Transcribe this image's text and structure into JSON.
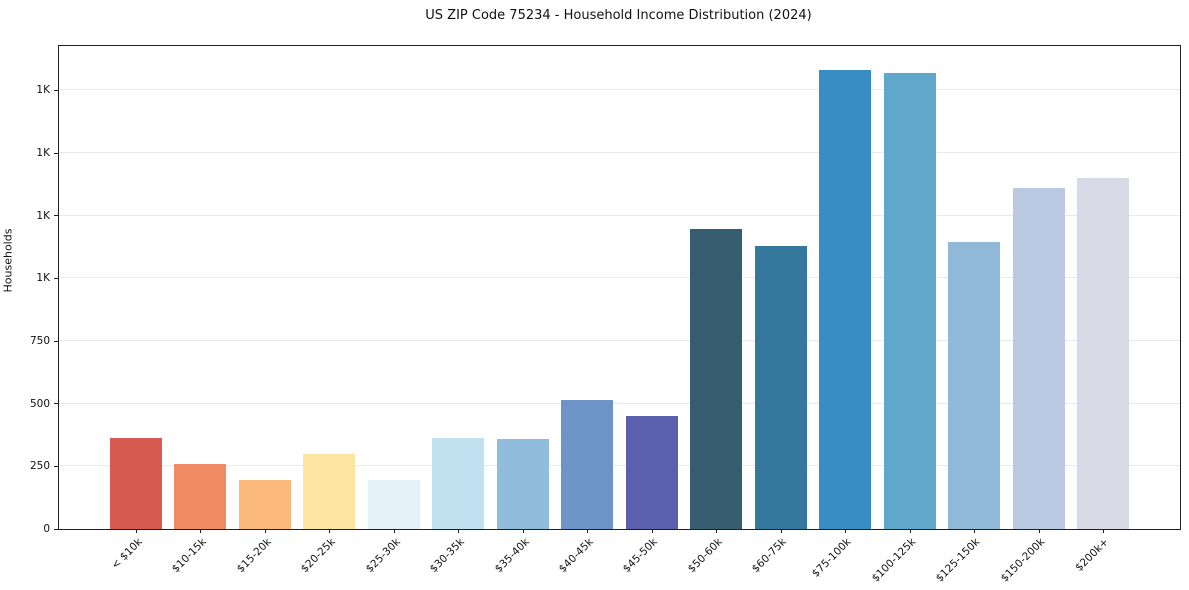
{
  "chart_data": {
    "type": "bar",
    "title": "US ZIP Code 75234 - Household Income Distribution (2024)",
    "xlabel": "",
    "ylabel": "Households",
    "legend": "none",
    "grid": "horizontal",
    "ylim": [
      0,
      1927
    ],
    "categories": [
      "< $10k",
      "$10-15k",
      "$15-20k",
      "$20-25k",
      "$25-30k",
      "$30-35k",
      "$35-40k",
      "$40-45k",
      "$45-50k",
      "$50-60k",
      "$60-75k",
      "$75-100k",
      "$100-125k",
      "$125-150k",
      "$150-200k",
      "$200k+"
    ],
    "values": [
      365,
      260,
      195,
      300,
      195,
      365,
      360,
      515,
      450,
      1195,
      1130,
      1830,
      1820,
      1145,
      1360,
      1400
    ],
    "bar_colors": [
      "#d75b51",
      "#f28a66",
      "#fcb97c",
      "#fde4a1",
      "#e4f1f7",
      "#c0e1ef",
      "#91bddd",
      "#6d94c7",
      "#5a5fae",
      "#365d70",
      "#35789c",
      "#398dc5",
      "#60a7cc",
      "#90b8d9",
      "#b9c9e1",
      "#d8dae7"
    ],
    "yticks": [
      {
        "value": 0,
        "label": "0"
      },
      {
        "value": 250,
        "label": "250"
      },
      {
        "value": 500,
        "label": "500"
      },
      {
        "value": 750,
        "label": "750"
      },
      {
        "value": 1000,
        "label": "1K"
      },
      {
        "value": 1250,
        "label": "1K"
      },
      {
        "value": 1500,
        "label": "1K"
      },
      {
        "value": 1750,
        "label": "1K"
      }
    ]
  },
  "colors": {
    "background": "#ffffff",
    "gridline": "#e9e9ec",
    "spine": "#1f1f1f",
    "text": "#111111"
  }
}
